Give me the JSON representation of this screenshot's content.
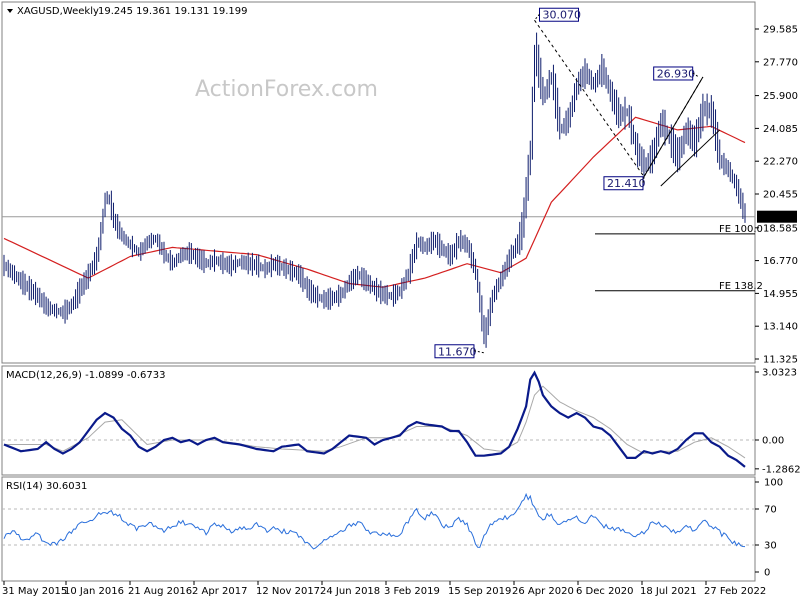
{
  "header": {
    "symbol": "XAGUSD,Weekly",
    "ohlc": "19.245 19.361 19.131 19.199"
  },
  "watermark": "ActionForex.com",
  "colors": {
    "ma": "#d42020",
    "price": "#0c1b6b",
    "macd": "#0a1a8a",
    "macd_signal": "#a9a9a9",
    "rsi": "#2a6fdb",
    "box_border": "#000080"
  },
  "chart_data": [
    {
      "type": "line",
      "name": "price",
      "y_ticks": [
        "29.585",
        "27.770",
        "25.900",
        "24.085",
        "22.270",
        "20.455",
        "18.585",
        "16.770",
        "14.955",
        "13.140",
        "11.325"
      ],
      "ylim": [
        11.325,
        31.1
      ],
      "last_price": "19.199",
      "annotations": [
        {
          "label": "30.070",
          "value": 30.07
        },
        {
          "label": "26.930",
          "value": 26.93
        },
        {
          "label": "21.410",
          "value": 21.41
        },
        {
          "label": "11.670",
          "value": 11.67
        }
      ],
      "levels": [
        {
          "label": "FE 100.0",
          "value": 18.25
        },
        {
          "label": "FE 138.2",
          "value": 15.1
        }
      ],
      "price_points": [
        [
          0,
          16.5
        ],
        [
          4,
          15.6
        ],
        [
          8,
          14.8
        ],
        [
          10,
          14.2
        ],
        [
          12,
          14.0
        ],
        [
          14,
          13.9
        ],
        [
          16,
          14.3
        ],
        [
          18,
          15.2
        ],
        [
          20,
          16.0
        ],
        [
          22,
          17.0
        ],
        [
          23,
          18.5
        ],
        [
          24,
          20.3
        ],
        [
          25,
          20.1
        ],
        [
          26,
          19.0
        ],
        [
          28,
          18.1
        ],
        [
          30,
          17.6
        ],
        [
          32,
          17.2
        ],
        [
          34,
          17.8
        ],
        [
          36,
          18.0
        ],
        [
          38,
          17.1
        ],
        [
          40,
          16.6
        ],
        [
          42,
          17.1
        ],
        [
          44,
          17.2
        ],
        [
          46,
          16.9
        ],
        [
          48,
          16.6
        ],
        [
          50,
          16.8
        ],
        [
          52,
          16.6
        ],
        [
          54,
          16.5
        ],
        [
          56,
          16.7
        ],
        [
          58,
          16.6
        ],
        [
          60,
          16.5
        ],
        [
          62,
          16.3
        ],
        [
          64,
          16.6
        ],
        [
          66,
          16.4
        ],
        [
          68,
          16.2
        ],
        [
          70,
          16.0
        ],
        [
          72,
          15.2
        ],
        [
          74,
          14.8
        ],
        [
          76,
          14.6
        ],
        [
          78,
          14.7
        ],
        [
          80,
          14.9
        ],
        [
          82,
          15.6
        ],
        [
          84,
          16.0
        ],
        [
          86,
          15.6
        ],
        [
          88,
          15.2
        ],
        [
          90,
          14.9
        ],
        [
          92,
          14.8
        ],
        [
          94,
          15.1
        ],
        [
          96,
          16.1
        ],
        [
          98,
          17.8
        ],
        [
          100,
          17.5
        ],
        [
          102,
          17.9
        ],
        [
          104,
          17.4
        ],
        [
          106,
          17.0
        ],
        [
          108,
          17.9
        ],
        [
          110,
          17.6
        ],
        [
          112,
          16.1
        ],
        [
          114,
          12.5
        ],
        [
          116,
          14.8
        ],
        [
          118,
          15.8
        ],
        [
          120,
          16.9
        ],
        [
          122,
          17.8
        ],
        [
          123,
          18.6
        ],
        [
          124,
          20.8
        ],
        [
          125,
          23.0
        ],
        [
          126,
          28.5
        ],
        [
          127,
          27.2
        ],
        [
          128,
          25.8
        ],
        [
          130,
          27.0
        ],
        [
          132,
          24.0
        ],
        [
          134,
          24.6
        ],
        [
          136,
          26.5
        ],
        [
          138,
          27.2
        ],
        [
          140,
          26.5
        ],
        [
          142,
          27.4
        ],
        [
          144,
          26.0
        ],
        [
          146,
          24.8
        ],
        [
          148,
          25.0
        ],
        [
          150,
          23.0
        ],
        [
          152,
          22.0
        ],
        [
          154,
          22.6
        ],
        [
          156,
          24.5
        ],
        [
          158,
          23.5
        ],
        [
          160,
          22.5
        ],
        [
          162,
          24.0
        ],
        [
          164,
          23.3
        ],
        [
          166,
          25.2
        ],
        [
          168,
          25.0
        ],
        [
          170,
          22.3
        ],
        [
          172,
          21.8
        ],
        [
          174,
          20.8
        ],
        [
          175,
          20.0
        ],
        [
          176,
          19.2
        ]
      ],
      "ma_points": [
        [
          0,
          18.0
        ],
        [
          10,
          16.9
        ],
        [
          20,
          15.8
        ],
        [
          30,
          17.0
        ],
        [
          40,
          17.5
        ],
        [
          60,
          17.1
        ],
        [
          72,
          16.3
        ],
        [
          82,
          15.5
        ],
        [
          90,
          15.3
        ],
        [
          100,
          15.8
        ],
        [
          110,
          16.6
        ],
        [
          118,
          16.1
        ],
        [
          124,
          16.9
        ],
        [
          130,
          20.0
        ],
        [
          140,
          22.5
        ],
        [
          150,
          24.7
        ],
        [
          160,
          24.0
        ],
        [
          168,
          24.2
        ],
        [
          176,
          23.3
        ]
      ]
    },
    {
      "type": "line",
      "name": "MACD",
      "header_label": "MACD(12,26,9) -1.0899 -0.6733",
      "y_ticks": [
        "3.0323",
        "0.00",
        "-1.2862"
      ],
      "ylim": [
        -1.7,
        3.2
      ],
      "macd_points": [
        [
          0,
          -0.2
        ],
        [
          4,
          -0.5
        ],
        [
          8,
          -0.4
        ],
        [
          10,
          -0.1
        ],
        [
          12,
          -0.4
        ],
        [
          14,
          -0.6
        ],
        [
          16,
          -0.4
        ],
        [
          18,
          -0.1
        ],
        [
          20,
          0.4
        ],
        [
          22,
          0.9
        ],
        [
          24,
          1.2
        ],
        [
          26,
          1.0
        ],
        [
          28,
          0.5
        ],
        [
          30,
          0.2
        ],
        [
          32,
          -0.3
        ],
        [
          34,
          -0.5
        ],
        [
          36,
          -0.3
        ],
        [
          38,
          0.0
        ],
        [
          40,
          0.1
        ],
        [
          42,
          -0.1
        ],
        [
          44,
          0.0
        ],
        [
          46,
          -0.2
        ],
        [
          48,
          0.0
        ],
        [
          50,
          0.1
        ],
        [
          52,
          -0.1
        ],
        [
          56,
          -0.2
        ],
        [
          60,
          -0.4
        ],
        [
          64,
          -0.5
        ],
        [
          66,
          -0.3
        ],
        [
          70,
          -0.2
        ],
        [
          72,
          -0.5
        ],
        [
          76,
          -0.6
        ],
        [
          78,
          -0.4
        ],
        [
          80,
          -0.1
        ],
        [
          82,
          0.2
        ],
        [
          86,
          0.1
        ],
        [
          88,
          -0.2
        ],
        [
          90,
          0.0
        ],
        [
          94,
          0.2
        ],
        [
          96,
          0.6
        ],
        [
          98,
          0.8
        ],
        [
          100,
          0.7
        ],
        [
          104,
          0.6
        ],
        [
          106,
          0.4
        ],
        [
          108,
          0.4
        ],
        [
          110,
          -0.1
        ],
        [
          112,
          -0.7
        ],
        [
          114,
          -0.7
        ],
        [
          118,
          -0.6
        ],
        [
          120,
          -0.3
        ],
        [
          122,
          0.5
        ],
        [
          124,
          1.5
        ],
        [
          125,
          2.7
        ],
        [
          126,
          3.0
        ],
        [
          127,
          2.6
        ],
        [
          128,
          2.0
        ],
        [
          130,
          1.5
        ],
        [
          132,
          1.2
        ],
        [
          134,
          1.0
        ],
        [
          136,
          1.2
        ],
        [
          138,
          1.0
        ],
        [
          140,
          0.6
        ],
        [
          142,
          0.5
        ],
        [
          144,
          0.2
        ],
        [
          146,
          -0.3
        ],
        [
          148,
          -0.8
        ],
        [
          150,
          -0.8
        ],
        [
          152,
          -0.5
        ],
        [
          154,
          -0.6
        ],
        [
          156,
          -0.5
        ],
        [
          158,
          -0.6
        ],
        [
          160,
          -0.4
        ],
        [
          162,
          0.0
        ],
        [
          164,
          0.3
        ],
        [
          166,
          0.3
        ],
        [
          168,
          -0.1
        ],
        [
          170,
          -0.3
        ],
        [
          172,
          -0.7
        ],
        [
          174,
          -0.9
        ],
        [
          176,
          -1.2
        ]
      ],
      "signal_points": [
        [
          0,
          -0.2
        ],
        [
          10,
          -0.2
        ],
        [
          14,
          -0.5
        ],
        [
          20,
          0.1
        ],
        [
          24,
          0.8
        ],
        [
          28,
          0.9
        ],
        [
          34,
          -0.2
        ],
        [
          40,
          0.0
        ],
        [
          50,
          0.0
        ],
        [
          60,
          -0.3
        ],
        [
          66,
          -0.4
        ],
        [
          76,
          -0.5
        ],
        [
          80,
          -0.3
        ],
        [
          86,
          0.1
        ],
        [
          92,
          0.1
        ],
        [
          98,
          0.6
        ],
        [
          104,
          0.6
        ],
        [
          110,
          0.2
        ],
        [
          114,
          -0.4
        ],
        [
          118,
          -0.5
        ],
        [
          122,
          -0.1
        ],
        [
          124,
          0.8
        ],
        [
          126,
          2.0
        ],
        [
          128,
          2.4
        ],
        [
          132,
          1.7
        ],
        [
          136,
          1.3
        ],
        [
          140,
          1.0
        ],
        [
          144,
          0.5
        ],
        [
          148,
          -0.2
        ],
        [
          152,
          -0.6
        ],
        [
          156,
          -0.5
        ],
        [
          160,
          -0.5
        ],
        [
          164,
          -0.1
        ],
        [
          168,
          0.1
        ],
        [
          172,
          -0.3
        ],
        [
          176,
          -0.8
        ]
      ]
    },
    {
      "type": "line",
      "name": "RSI",
      "header_label": "RSI(14) 30.6031",
      "y_ticks": [
        "100",
        "70",
        "30",
        "0"
      ],
      "ylim": [
        0,
        100
      ],
      "levels": [
        70,
        30
      ],
      "rsi_points": [
        [
          0,
          40
        ],
        [
          2,
          45
        ],
        [
          4,
          38
        ],
        [
          6,
          35
        ],
        [
          8,
          45
        ],
        [
          10,
          30
        ],
        [
          12,
          30
        ],
        [
          14,
          35
        ],
        [
          16,
          45
        ],
        [
          18,
          55
        ],
        [
          20,
          58
        ],
        [
          22,
          62
        ],
        [
          24,
          68
        ],
        [
          26,
          65
        ],
        [
          28,
          60
        ],
        [
          30,
          52
        ],
        [
          32,
          48
        ],
        [
          34,
          55
        ],
        [
          36,
          50
        ],
        [
          38,
          44
        ],
        [
          40,
          52
        ],
        [
          42,
          55
        ],
        [
          44,
          52
        ],
        [
          46,
          48
        ],
        [
          48,
          44
        ],
        [
          50,
          52
        ],
        [
          52,
          50
        ],
        [
          54,
          46
        ],
        [
          56,
          50
        ],
        [
          58,
          48
        ],
        [
          60,
          52
        ],
        [
          62,
          46
        ],
        [
          64,
          50
        ],
        [
          66,
          45
        ],
        [
          68,
          44
        ],
        [
          70,
          40
        ],
        [
          72,
          30
        ],
        [
          74,
          28
        ],
        [
          76,
          34
        ],
        [
          78,
          40
        ],
        [
          80,
          45
        ],
        [
          82,
          52
        ],
        [
          84,
          55
        ],
        [
          86,
          48
        ],
        [
          88,
          42
        ],
        [
          90,
          44
        ],
        [
          92,
          40
        ],
        [
          94,
          42
        ],
        [
          96,
          56
        ],
        [
          98,
          70
        ],
        [
          100,
          60
        ],
        [
          102,
          65
        ],
        [
          104,
          52
        ],
        [
          106,
          48
        ],
        [
          108,
          60
        ],
        [
          110,
          52
        ],
        [
          112,
          32
        ],
        [
          113,
          25
        ],
        [
          114,
          42
        ],
        [
          116,
          54
        ],
        [
          118,
          60
        ],
        [
          120,
          62
        ],
        [
          122,
          70
        ],
        [
          124,
          84
        ],
        [
          125,
          82
        ],
        [
          126,
          70
        ],
        [
          128,
          60
        ],
        [
          130,
          64
        ],
        [
          132,
          52
        ],
        [
          134,
          58
        ],
        [
          136,
          60
        ],
        [
          138,
          55
        ],
        [
          140,
          62
        ],
        [
          142,
          52
        ],
        [
          144,
          50
        ],
        [
          146,
          48
        ],
        [
          148,
          42
        ],
        [
          150,
          38
        ],
        [
          152,
          44
        ],
        [
          154,
          56
        ],
        [
          156,
          52
        ],
        [
          158,
          48
        ],
        [
          160,
          44
        ],
        [
          162,
          50
        ],
        [
          164,
          46
        ],
        [
          166,
          58
        ],
        [
          168,
          52
        ],
        [
          170,
          44
        ],
        [
          172,
          38
        ],
        [
          174,
          30
        ],
        [
          176,
          31
        ]
      ]
    },
    {
      "type": "axis",
      "name": "time",
      "x_tick_labels": [
        "31 May 2015",
        "10 Jan 2016",
        "21 Aug 2016",
        "2 Apr 2017",
        "12 Nov 2017",
        "24 Jun 2018",
        "3 Feb 2019",
        "15 Sep 2019",
        "26 Apr 2020",
        "6 Dec 2020",
        "18 Jul 2021",
        "27 Feb 2022"
      ]
    }
  ]
}
